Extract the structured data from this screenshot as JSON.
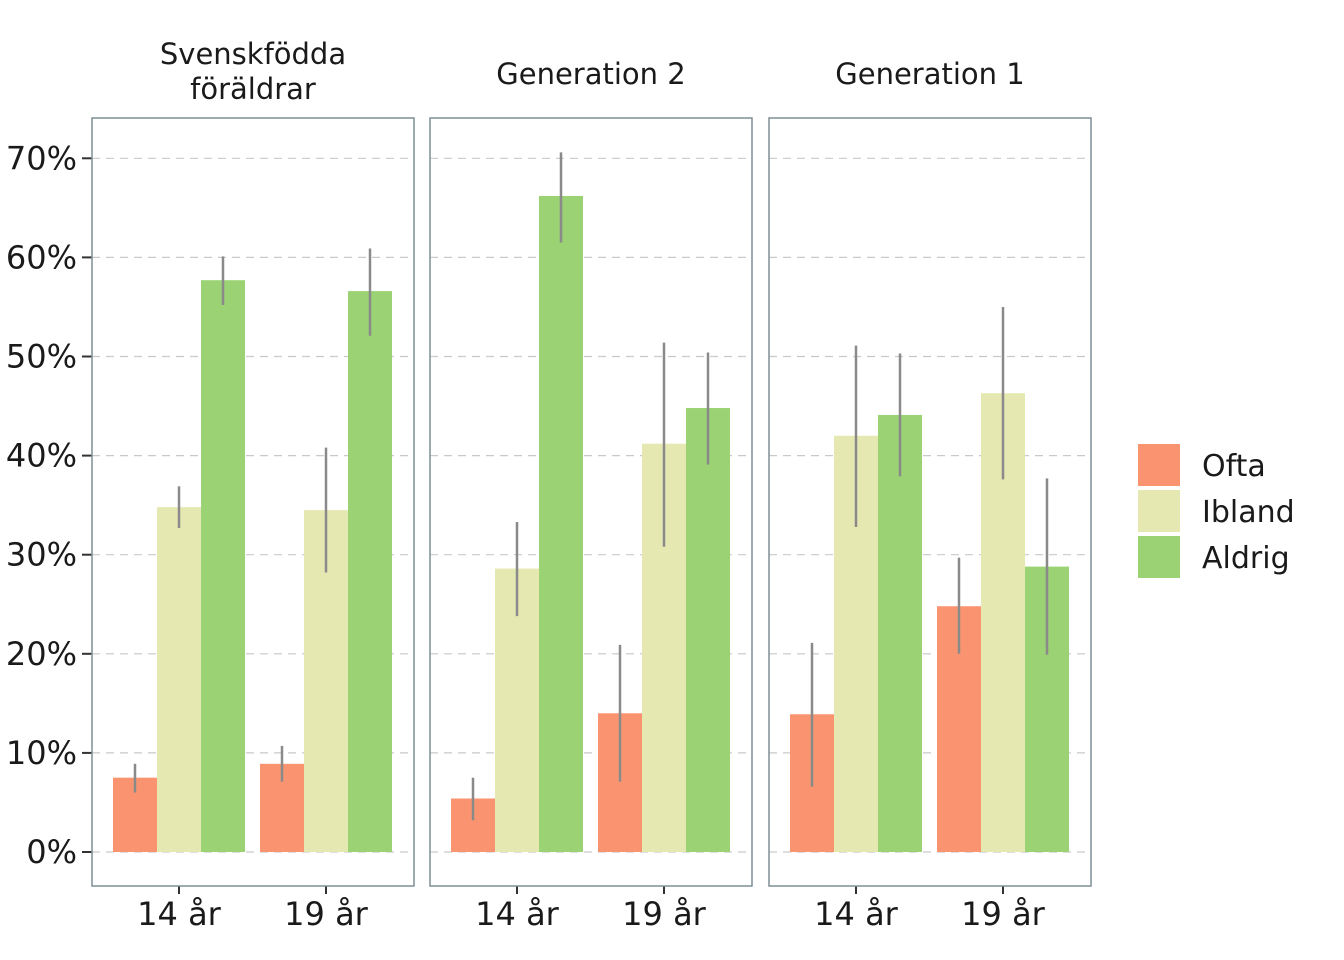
{
  "chart_data": {
    "type": "bar",
    "y_ticks": [
      "0%",
      "10%",
      "20%",
      "30%",
      "40%",
      "50%",
      "60%",
      "70%"
    ],
    "ylim": [
      0,
      74
    ],
    "grid": "horizontal dashed",
    "legend_position": "right",
    "series": [
      {
        "name": "Ofta",
        "color": "#fa9470"
      },
      {
        "name": "Ibland",
        "color": "#e6e8b1"
      },
      {
        "name": "Aldrig",
        "color": "#9bd374"
      }
    ],
    "panels": [
      {
        "title_lines": [
          "Svenskfödda",
          "föräldrar"
        ],
        "categories": [
          "14 år",
          "19 år"
        ],
        "values": [
          [
            7.5,
            34.8,
            57.7
          ],
          [
            8.9,
            34.5,
            56.6
          ]
        ],
        "error": [
          [
            [
              6.0,
              8.9
            ],
            [
              32.7,
              36.9
            ],
            [
              55.2,
              60.1
            ]
          ],
          [
            [
              7.1,
              10.7
            ],
            [
              28.2,
              40.8
            ],
            [
              52.1,
              60.9
            ]
          ]
        ]
      },
      {
        "title_lines": [
          "Generation 2"
        ],
        "categories": [
          "14 år",
          "19 år"
        ],
        "values": [
          [
            5.4,
            28.6,
            66.2
          ],
          [
            14.0,
            41.2,
            44.8
          ]
        ],
        "error": [
          [
            [
              3.2,
              7.5
            ],
            [
              23.8,
              33.3
            ],
            [
              61.5,
              70.6
            ]
          ],
          [
            [
              7.1,
              20.9
            ],
            [
              30.8,
              51.4
            ],
            [
              39.1,
              50.4
            ]
          ]
        ]
      },
      {
        "title_lines": [
          "Generation 1"
        ],
        "categories": [
          "14 år",
          "19 år"
        ],
        "values": [
          [
            13.9,
            42.0,
            44.1
          ],
          [
            24.8,
            46.3,
            28.8
          ]
        ],
        "error": [
          [
            [
              6.6,
              21.1
            ],
            [
              32.8,
              51.1
            ],
            [
              37.9,
              50.3
            ]
          ],
          [
            [
              20.0,
              29.7
            ],
            [
              37.6,
              55.0
            ],
            [
              19.9,
              37.7
            ]
          ]
        ]
      }
    ]
  }
}
